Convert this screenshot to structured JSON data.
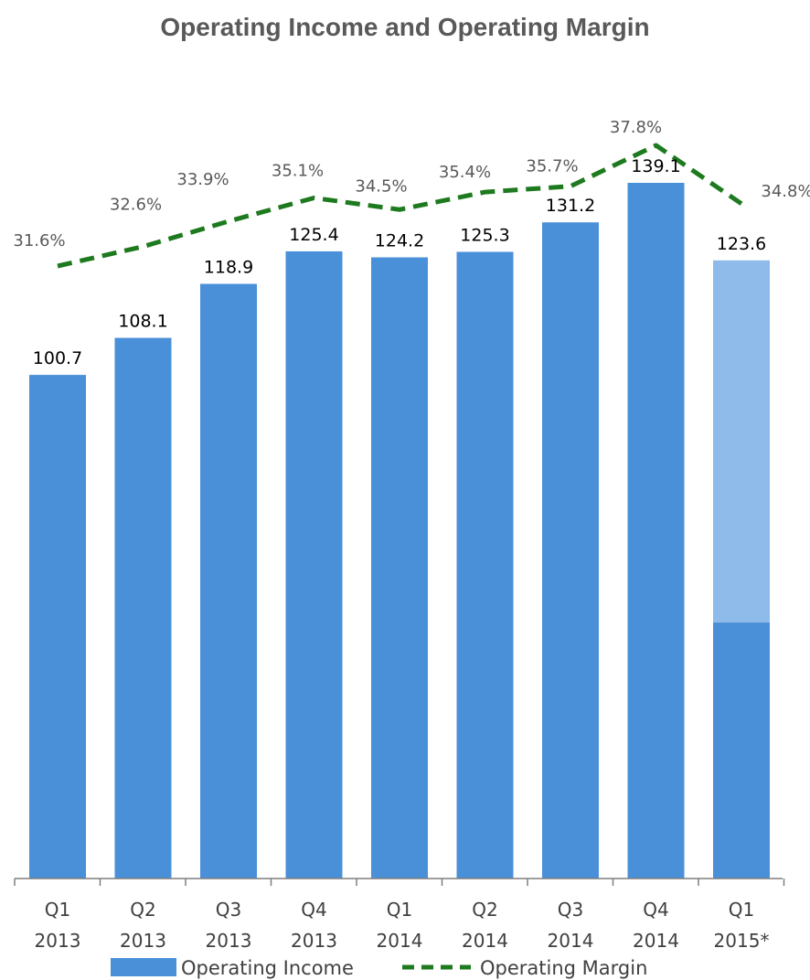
{
  "title": "Operating Income and Operating Margin",
  "chart_data": {
    "type": "bar",
    "title": "Operating Income and Operating Margin",
    "categories": [
      [
        "Q1",
        "2013"
      ],
      [
        "Q2",
        "2013"
      ],
      [
        "Q3",
        "2013"
      ],
      [
        "Q4",
        "2013"
      ],
      [
        "Q1",
        "2014"
      ],
      [
        "Q2",
        "2014"
      ],
      [
        "Q3",
        "2014"
      ],
      [
        "Q4",
        "2014"
      ],
      [
        "Q1",
        "2015*"
      ]
    ],
    "series": [
      {
        "name": "Operating Income",
        "type": "bar",
        "color": "#4a90d9",
        "values": [
          100.7,
          108.1,
          118.9,
          125.4,
          124.2,
          125.3,
          131.2,
          139.1,
          123.6
        ],
        "labels": [
          "100.7",
          "108.1",
          "118.9",
          "125.4",
          "124.2",
          "125.3",
          "131.2",
          "139.1",
          "123.6"
        ],
        "last_bar_split": {
          "lower_value": 51.2,
          "lower_color": "#4a90d9",
          "upper_color": "#8fbbea"
        }
      },
      {
        "name": "Operating Margin",
        "type": "line",
        "style": "dashed",
        "color": "#1e7a1e",
        "values": [
          31.6,
          32.6,
          33.9,
          35.1,
          34.5,
          35.4,
          35.7,
          37.8,
          34.8
        ],
        "labels": [
          "31.6%",
          "32.6%",
          "33.9%",
          "35.1%",
          "34.5%",
          "35.4%",
          "35.7%",
          "37.8%",
          "34.8%"
        ]
      }
    ],
    "legend": {
      "position": "bottom"
    },
    "grid": false
  }
}
